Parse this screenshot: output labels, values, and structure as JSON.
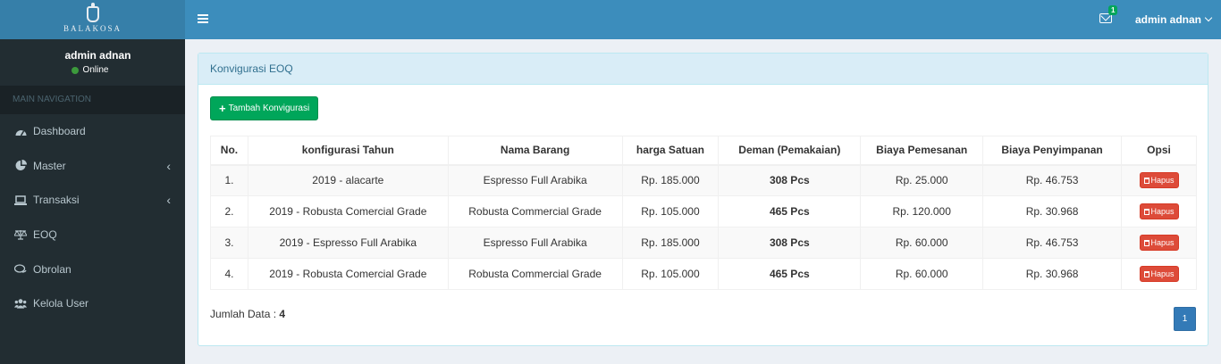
{
  "brand": {
    "logo_text": "BALAKOSA"
  },
  "user": {
    "name": "admin adnan",
    "status": "Online"
  },
  "sidebar": {
    "header": "MAIN NAVIGATION",
    "items": [
      {
        "label": "Dashboard",
        "icon": "dashboard-icon",
        "has_children": false
      },
      {
        "label": "Master",
        "icon": "pie-chart-icon",
        "has_children": true
      },
      {
        "label": "Transaksi",
        "icon": "laptop-icon",
        "has_children": true
      },
      {
        "label": "EOQ",
        "icon": "balance-scale-icon",
        "has_children": false
      },
      {
        "label": "Obrolan",
        "icon": "chat-icon",
        "has_children": false
      },
      {
        "label": "Kelola User",
        "icon": "users-icon",
        "has_children": false
      }
    ]
  },
  "header": {
    "mail_badge": "1",
    "user_menu": "admin adnan"
  },
  "box": {
    "title": "Konvigurasi EOQ",
    "add_button": "Tambah Konvigurasi",
    "columns": [
      "No.",
      "konfigurasi Tahun",
      "Nama Barang",
      "harga Satuan",
      "Deman (Pemakaian)",
      "Biaya Pemesanan",
      "Biaya Penyimpanan",
      "Opsi"
    ],
    "rows": [
      {
        "no": "1.",
        "tahun": "2019 - alacarte",
        "barang": "Espresso Full Arabika",
        "harga": "Rp. 185.000",
        "deman": "308 Pcs",
        "pemesanan": "Rp. 25.000",
        "penyimpanan": "Rp. 46.753",
        "opsi": "Hapus"
      },
      {
        "no": "2.",
        "tahun": "2019 - Robusta Comercial Grade",
        "barang": "Robusta Commercial Grade",
        "harga": "Rp. 105.000",
        "deman": "465 Pcs",
        "pemesanan": "Rp. 120.000",
        "penyimpanan": "Rp. 30.968",
        "opsi": "Hapus"
      },
      {
        "no": "3.",
        "tahun": "2019 - Espresso Full Arabika",
        "barang": "Espresso Full Arabika",
        "harga": "Rp. 185.000",
        "deman": "308 Pcs",
        "pemesanan": "Rp. 60.000",
        "penyimpanan": "Rp. 46.753",
        "opsi": "Hapus"
      },
      {
        "no": "4.",
        "tahun": "2019 - Robusta Comercial Grade",
        "barang": "Robusta Commercial Grade",
        "harga": "Rp. 105.000",
        "deman": "465 Pcs",
        "pemesanan": "Rp. 60.000",
        "penyimpanan": "Rp. 30.968",
        "opsi": "Hapus"
      }
    ],
    "footer_label": "Jumlah Data : ",
    "footer_count": "4",
    "page": "1"
  },
  "colors": {
    "sidebar": "#222d32",
    "header": "#3c8dbc",
    "success": "#00a65a",
    "danger": "#dd4b39",
    "primary": "#337ab7"
  }
}
